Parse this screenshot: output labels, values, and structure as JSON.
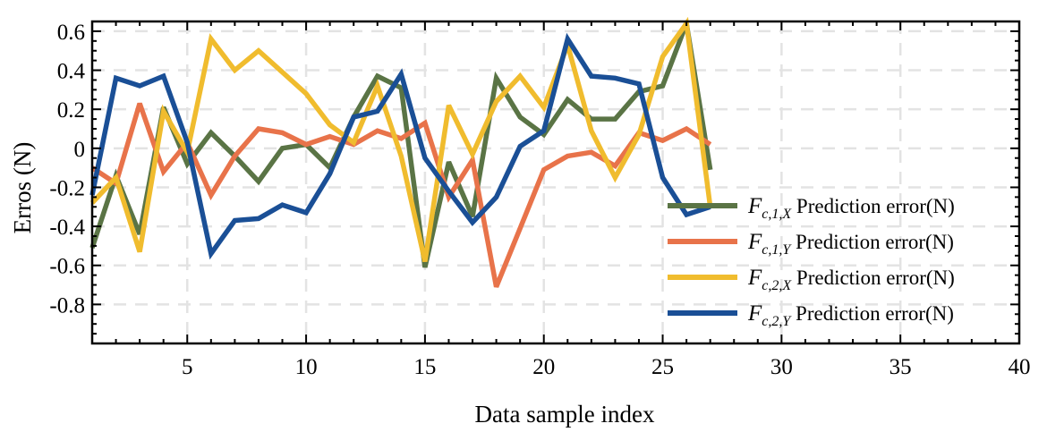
{
  "chart_data": {
    "type": "line",
    "title": "",
    "xlabel": "Data sample index",
    "ylabel": "Erros (N)",
    "xlim": [
      1,
      40
    ],
    "ylim": [
      -1.0,
      0.65
    ],
    "x_ticks": [
      5,
      10,
      15,
      20,
      25,
      30,
      35,
      40
    ],
    "y_ticks": [
      -0.8,
      -0.6,
      -0.4,
      -0.2,
      0,
      0.2,
      0.4,
      0.6
    ],
    "x_tick_labels": [
      "5",
      "10",
      "15",
      "20",
      "25",
      "30",
      "35",
      "40"
    ],
    "y_tick_labels": [
      "-0.8",
      "-0.6",
      "-0.4",
      "-0.2",
      "0",
      "0.2",
      "0.4",
      "0.6"
    ],
    "grid": true,
    "legend_position": "lower-right",
    "x": [
      1,
      2,
      3,
      4,
      5,
      6,
      7,
      8,
      9,
      10,
      11,
      12,
      13,
      14,
      15,
      16,
      17,
      18,
      19,
      20,
      21,
      22,
      23,
      24,
      25,
      26,
      27
    ],
    "series": [
      {
        "name": "F_{c,1,X} Prediction error(N)",
        "symbol": "F",
        "subscript": "c,1,X",
        "suffix": "Prediction error(N)",
        "color": "#5a7445",
        "values": [
          -0.51,
          -0.14,
          -0.44,
          0.21,
          -0.08,
          0.08,
          -0.04,
          -0.17,
          0.0,
          0.02,
          -0.1,
          0.16,
          0.37,
          0.31,
          -0.61,
          -0.07,
          -0.35,
          0.36,
          0.16,
          0.07,
          0.25,
          0.15,
          0.15,
          0.29,
          0.32,
          0.64,
          -0.11
        ]
      },
      {
        "name": "F_{c,1,Y} Prediction error(N)",
        "symbol": "F",
        "subscript": "c,1,Y",
        "suffix": "Prediction error(N)",
        "color": "#e8734a",
        "values": [
          -0.1,
          -0.18,
          0.23,
          -0.12,
          0.03,
          -0.24,
          -0.04,
          0.1,
          0.08,
          0.02,
          0.06,
          0.02,
          0.09,
          0.05,
          0.13,
          -0.25,
          -0.06,
          -0.71,
          -0.41,
          -0.11,
          -0.04,
          -0.02,
          -0.09,
          0.08,
          0.04,
          0.1,
          0.02
        ]
      },
      {
        "name": "F_{c,2,X} Prediction error(N)",
        "symbol": "F",
        "subscript": "c,2,X",
        "suffix": "Prediction error(N)",
        "color": "#f0bc2e",
        "values": [
          -0.28,
          -0.15,
          -0.53,
          0.19,
          -0.02,
          0.56,
          0.4,
          0.5,
          0.39,
          0.28,
          0.12,
          0.03,
          0.32,
          -0.04,
          -0.58,
          0.22,
          -0.03,
          0.24,
          0.37,
          0.21,
          0.53,
          0.09,
          -0.15,
          0.07,
          0.47,
          0.64,
          -0.3
        ]
      },
      {
        "name": "F_{c,2,Y} Prediction error(N)",
        "symbol": "F",
        "subscript": "c,2,Y",
        "suffix": "Prediction error(N)",
        "color": "#1a4f96",
        "values": [
          -0.24,
          0.36,
          0.32,
          0.37,
          0.03,
          -0.54,
          -0.37,
          -0.36,
          -0.29,
          -0.33,
          -0.13,
          0.16,
          0.19,
          0.38,
          -0.05,
          -0.22,
          -0.38,
          -0.25,
          0.01,
          0.09,
          0.56,
          0.37,
          0.36,
          0.33,
          -0.15,
          -0.34,
          -0.3
        ]
      }
    ]
  }
}
